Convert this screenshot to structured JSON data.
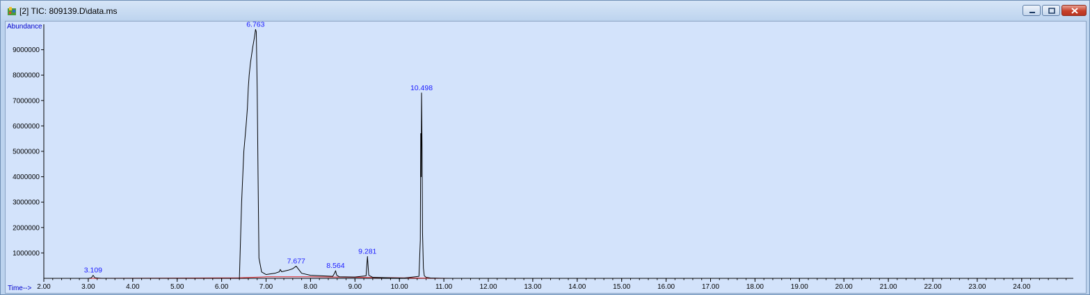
{
  "window": {
    "title": "[2] TIC: 809139.D\\data.ms"
  },
  "colors": {
    "plot_background": "#d3e3fb",
    "trace": "#000000",
    "baseline": "#e02020",
    "label": "#1a1aff"
  },
  "chart_data": {
    "type": "line",
    "ylabel": "Abundance",
    "xlabel": "Time-->",
    "xlim": [
      2.0,
      25.0
    ],
    "ylim": [
      0,
      10100000
    ],
    "x_ticks": [
      "2.00",
      "3.00",
      "4.00",
      "5.00",
      "6.00",
      "7.00",
      "8.00",
      "9.00",
      "10.00",
      "11.00",
      "12.00",
      "13.00",
      "14.00",
      "15.00",
      "16.00",
      "17.00",
      "18.00",
      "19.00",
      "20.00",
      "21.00",
      "22.00",
      "23.00",
      "24.00"
    ],
    "y_ticks": [
      "1000000",
      "2000000",
      "3000000",
      "4000000",
      "5000000",
      "6000000",
      "7000000",
      "8000000",
      "9000000"
    ],
    "peaks": [
      {
        "label": "3.109",
        "x": 3.109,
        "y": 120000
      },
      {
        "label": "6.763",
        "x": 6.763,
        "y": 9800000
      },
      {
        "label": "7.677",
        "x": 7.677,
        "y": 480000
      },
      {
        "label": "8.564",
        "x": 8.564,
        "y": 300000
      },
      {
        "label": "9.281",
        "x": 9.281,
        "y": 860000
      },
      {
        "label": "10.498",
        "x": 10.498,
        "y": 7300000
      }
    ],
    "series": [
      {
        "x": [
          2.0,
          3.0,
          3.07,
          3.109,
          3.15,
          3.3,
          6.4,
          6.45,
          6.5,
          6.55,
          6.58,
          6.6,
          6.62,
          6.65,
          6.7,
          6.74,
          6.763,
          6.78,
          6.8,
          6.82,
          6.84,
          6.9,
          7.0,
          7.2,
          7.3,
          7.32,
          7.35,
          7.5,
          7.6,
          7.677,
          7.72,
          7.8,
          8.0,
          8.5,
          8.54,
          8.564,
          8.59,
          8.65,
          9.0,
          9.25,
          9.281,
          9.31,
          9.4,
          9.8,
          10.1,
          10.44,
          10.47,
          10.48,
          10.49,
          10.498,
          10.51,
          10.52,
          10.54,
          10.56,
          10.6,
          10.7,
          11.0,
          11.2,
          25.0
        ],
        "y": [
          0,
          0,
          20000,
          120000,
          20000,
          0,
          0,
          3000000,
          5000000,
          6000000,
          6700000,
          7500000,
          8000000,
          8500000,
          9100000,
          9500000,
          9800000,
          9700000,
          7500000,
          4000000,
          800000,
          250000,
          150000,
          200000,
          260000,
          350000,
          260000,
          320000,
          380000,
          480000,
          380000,
          200000,
          120000,
          80000,
          200000,
          300000,
          120000,
          60000,
          50000,
          100000,
          860000,
          120000,
          40000,
          20000,
          10000,
          80000,
          1500000,
          5700000,
          4000000,
          7300000,
          5000000,
          1800000,
          400000,
          100000,
          40000,
          15000,
          0,
          0,
          0
        ]
      }
    ],
    "baseline": {
      "x": [
        2.0,
        3.0,
        6.4,
        7.0,
        8.0,
        9.0,
        10.0,
        10.5,
        11.2,
        25.0
      ],
      "y": [
        0,
        0,
        20000,
        60000,
        60000,
        40000,
        20000,
        10000,
        0,
        0
      ]
    }
  }
}
